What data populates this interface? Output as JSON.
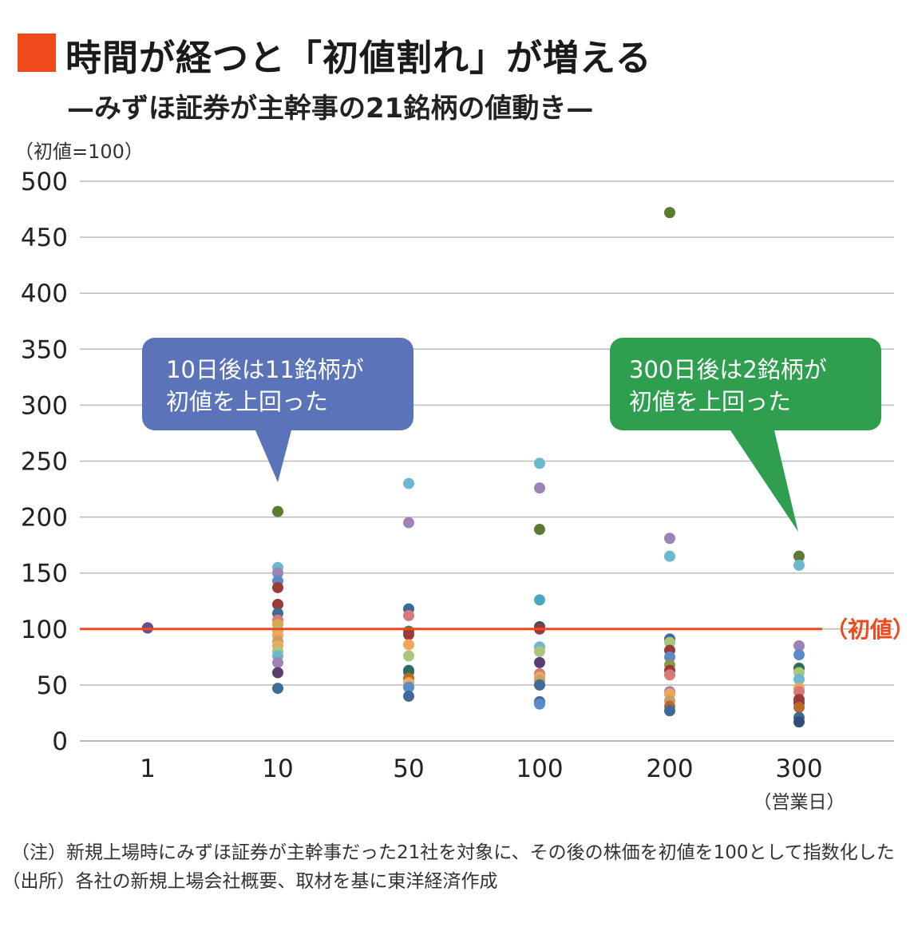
{
  "header": {
    "title": "時間が経つと「初値割れ」が増える",
    "subtitle": "—みずほ証券が主幹事の21銘柄の値動き—",
    "unit_label": "（初値=100）"
  },
  "footer": {
    "note": "（注）新規上場時にみずほ証券が主幹事だった21社を対象に、その後の株価を初値を100として指数化した",
    "source": "（出所）各社の新規上場会社概要、取材を基に東洋経済作成"
  },
  "colors": {
    "title_mark": "#f04a1c",
    "reference_line": "#f04a1c",
    "grid": "#bbbbbb",
    "callout_blue": "#5b73b8",
    "callout_green": "#2e9e4f"
  },
  "chart_data": {
    "type": "scatter",
    "title": "時間が経つと「初値割れ」が増える",
    "subtitle": "—みずほ証券が主幹事の21銘柄の値動き—",
    "ylabel": "（初値=100）",
    "xlabel": "（営業日）",
    "categories": [
      "1",
      "10",
      "50",
      "100",
      "200",
      "300"
    ],
    "ylim": [
      0,
      500
    ],
    "yticks": [
      0,
      50,
      100,
      150,
      200,
      250,
      300,
      350,
      400,
      450,
      500
    ],
    "grid": true,
    "reference_line": {
      "value": 100,
      "label": "（初値）"
    },
    "points": [
      {
        "x": "1",
        "y": 101,
        "color": "#3d6a96"
      },
      {
        "x": "1",
        "y": 101,
        "color": "#9b3a3a"
      },
      {
        "x": "1",
        "y": 101,
        "color": "#6b4e8a"
      },
      {
        "x": "10",
        "y": 205,
        "color": "#5c7a32"
      },
      {
        "x": "10",
        "y": 155,
        "color": "#6bb8cf"
      },
      {
        "x": "10",
        "y": 150,
        "color": "#9d82b8"
      },
      {
        "x": "10",
        "y": 143,
        "color": "#5b8ac7"
      },
      {
        "x": "10",
        "y": 137,
        "color": "#9b3a3a"
      },
      {
        "x": "10",
        "y": 122,
        "color": "#9b3a3a"
      },
      {
        "x": "10",
        "y": 114,
        "color": "#3d6a96"
      },
      {
        "x": "10",
        "y": 108,
        "color": "#d97a7a"
      },
      {
        "x": "10",
        "y": 104,
        "color": "#d9a84e"
      },
      {
        "x": "10",
        "y": 98,
        "color": "#a8c67c"
      },
      {
        "x": "10",
        "y": 94,
        "color": "#f2a65a"
      },
      {
        "x": "10",
        "y": 89,
        "color": "#c8a060"
      },
      {
        "x": "10",
        "y": 85,
        "color": "#f2a65a"
      },
      {
        "x": "10",
        "y": 80,
        "color": "#a8c67c"
      },
      {
        "x": "10",
        "y": 76,
        "color": "#6bb8cf"
      },
      {
        "x": "10",
        "y": 70,
        "color": "#9d82b8"
      },
      {
        "x": "10",
        "y": 61,
        "color": "#5a3d6e"
      },
      {
        "x": "10",
        "y": 47,
        "color": "#3d6a96"
      },
      {
        "x": "50",
        "y": 230,
        "color": "#6bb8cf"
      },
      {
        "x": "50",
        "y": 195,
        "color": "#9d82b8"
      },
      {
        "x": "50",
        "y": 118,
        "color": "#3d6a96"
      },
      {
        "x": "50",
        "y": 112,
        "color": "#d97a7a"
      },
      {
        "x": "50",
        "y": 98,
        "color": "#5c7a32"
      },
      {
        "x": "50",
        "y": 95,
        "color": "#9b3a3a"
      },
      {
        "x": "50",
        "y": 86,
        "color": "#f2a65a"
      },
      {
        "x": "50",
        "y": 76,
        "color": "#a8c67c"
      },
      {
        "x": "50",
        "y": 63,
        "color": "#3d6a96"
      },
      {
        "x": "50",
        "y": 62,
        "color": "#2f6b55"
      },
      {
        "x": "50",
        "y": 56,
        "color": "#b86a2a"
      },
      {
        "x": "50",
        "y": 52,
        "color": "#f2a65a"
      },
      {
        "x": "50",
        "y": 48,
        "color": "#5b8ac7"
      },
      {
        "x": "50",
        "y": 40,
        "color": "#3d6a96"
      },
      {
        "x": "100",
        "y": 248,
        "color": "#6bb8cf"
      },
      {
        "x": "100",
        "y": 226,
        "color": "#9d82b8"
      },
      {
        "x": "100",
        "y": 189,
        "color": "#5c7a32"
      },
      {
        "x": "100",
        "y": 126,
        "color": "#4aa8c2"
      },
      {
        "x": "100",
        "y": 102,
        "color": "#2f4f75"
      },
      {
        "x": "100",
        "y": 100,
        "color": "#9b3a3a"
      },
      {
        "x": "100",
        "y": 84,
        "color": "#6bb8cf"
      },
      {
        "x": "100",
        "y": 80,
        "color": "#a8c67c"
      },
      {
        "x": "100",
        "y": 70,
        "color": "#5a3d6e"
      },
      {
        "x": "100",
        "y": 60,
        "color": "#d97a7a"
      },
      {
        "x": "100",
        "y": 57,
        "color": "#f2a65a"
      },
      {
        "x": "100",
        "y": 54,
        "color": "#c8a060"
      },
      {
        "x": "100",
        "y": 50,
        "color": "#3d6a96"
      },
      {
        "x": "100",
        "y": 35,
        "color": "#3d6a96"
      },
      {
        "x": "100",
        "y": 33,
        "color": "#5b8ac7"
      },
      {
        "x": "200",
        "y": 472,
        "color": "#5c7a32"
      },
      {
        "x": "200",
        "y": 181,
        "color": "#9d82b8"
      },
      {
        "x": "200",
        "y": 165,
        "color": "#6bb8cf"
      },
      {
        "x": "200",
        "y": 91,
        "color": "#3d6a96"
      },
      {
        "x": "200",
        "y": 88,
        "color": "#a8c67c"
      },
      {
        "x": "200",
        "y": 81,
        "color": "#9b3a3a"
      },
      {
        "x": "200",
        "y": 75,
        "color": "#5b8ac7"
      },
      {
        "x": "200",
        "y": 68,
        "color": "#8a9a4a"
      },
      {
        "x": "200",
        "y": 63,
        "color": "#9b3a3a"
      },
      {
        "x": "200",
        "y": 59,
        "color": "#d97a7a"
      },
      {
        "x": "200",
        "y": 44,
        "color": "#9d82b8"
      },
      {
        "x": "200",
        "y": 42,
        "color": "#f2a65a"
      },
      {
        "x": "200",
        "y": 36,
        "color": "#c8a060"
      },
      {
        "x": "200",
        "y": 31,
        "color": "#b86a2a"
      },
      {
        "x": "200",
        "y": 27,
        "color": "#3d6a96"
      },
      {
        "x": "300",
        "y": 165,
        "color": "#5c7a32"
      },
      {
        "x": "300",
        "y": 157,
        "color": "#6bb8cf"
      },
      {
        "x": "300",
        "y": 85,
        "color": "#9d82b8"
      },
      {
        "x": "300",
        "y": 77,
        "color": "#5b8ac7"
      },
      {
        "x": "300",
        "y": 65,
        "color": "#2f6b55"
      },
      {
        "x": "300",
        "y": 61,
        "color": "#a8c67c"
      },
      {
        "x": "300",
        "y": 55,
        "color": "#6bb8cf"
      },
      {
        "x": "300",
        "y": 47,
        "color": "#f2a65a"
      },
      {
        "x": "300",
        "y": 44,
        "color": "#d97a7a"
      },
      {
        "x": "300",
        "y": 37,
        "color": "#9b3a3a"
      },
      {
        "x": "300",
        "y": 34,
        "color": "#9b3a3a"
      },
      {
        "x": "300",
        "y": 30,
        "color": "#b86a2a"
      },
      {
        "x": "300",
        "y": 21,
        "color": "#3d6a96"
      },
      {
        "x": "300",
        "y": 17,
        "color": "#2f4f75"
      }
    ],
    "annotations": [
      {
        "line1": "10日後は11銘柄が",
        "line2": "初値を上回った",
        "x": "10",
        "color": "#5b73b8"
      },
      {
        "line1": "300日後は2銘柄が",
        "line2": "初値を上回った",
        "x": "300",
        "color": "#2e9e4f"
      }
    ]
  }
}
